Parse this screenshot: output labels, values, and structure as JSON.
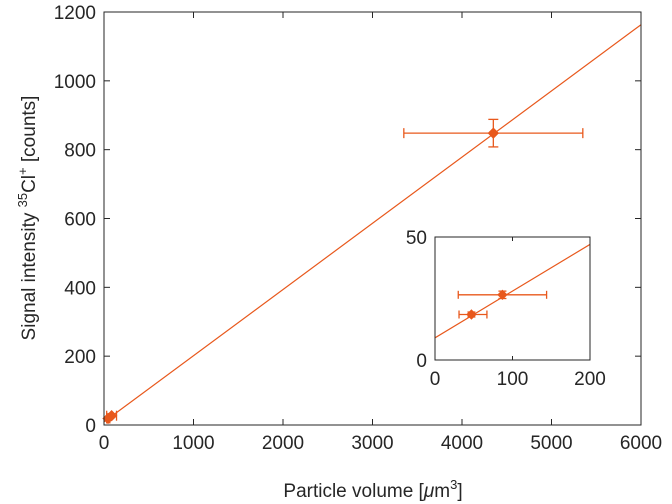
{
  "chart_data": [
    {
      "type": "scatter",
      "role": "main",
      "xlabel_parts": {
        "prefix": "Particle volume [",
        "greek": "μ",
        "unit": "m",
        "exp": "3",
        "suffix": "]"
      },
      "ylabel_parts": {
        "prefix": "Signal intensity ",
        "iso": "35",
        "elem": "Cl",
        "charge": "+",
        "suffix": " [counts]"
      },
      "xlim": [
        0,
        6000
      ],
      "ylim": [
        0,
        1200
      ],
      "xticks": [
        0,
        1000,
        2000,
        3000,
        4000,
        5000,
        6000
      ],
      "yticks": [
        0,
        200,
        400,
        600,
        800,
        1000,
        1200
      ],
      "grid": false,
      "color": "#e8581c",
      "points": [
        {
          "x": 4350,
          "y": 848,
          "xerr": [
            1000,
            1000
          ],
          "yerr": [
            40,
            40
          ]
        },
        {
          "x": 85,
          "y": 27,
          "xerr": [
            55,
            55
          ],
          "yerr": [
            2,
            2
          ]
        },
        {
          "x": 45,
          "y": 19,
          "xerr": [
            15,
            20
          ],
          "yerr": [
            1,
            1
          ]
        }
      ],
      "fit_line": {
        "x": [
          0,
          6000
        ],
        "y": [
          9,
          1163
        ]
      }
    },
    {
      "type": "scatter",
      "role": "inset",
      "xlim": [
        0,
        200
      ],
      "ylim": [
        0,
        50
      ],
      "xticks": [
        0,
        100,
        200
      ],
      "yticks": [
        0,
        50
      ],
      "grid": false,
      "color": "#e8581c",
      "points": [
        {
          "x": 87,
          "y": 26.5,
          "xerr": [
            57,
            57
          ],
          "yerr": [
            1.5,
            1.5
          ]
        },
        {
          "x": 47,
          "y": 18.5,
          "xerr": [
            16,
            20
          ],
          "yerr": [
            1,
            1
          ]
        }
      ],
      "fit_line": {
        "x": [
          0,
          200
        ],
        "y": [
          9,
          47
        ]
      }
    }
  ]
}
